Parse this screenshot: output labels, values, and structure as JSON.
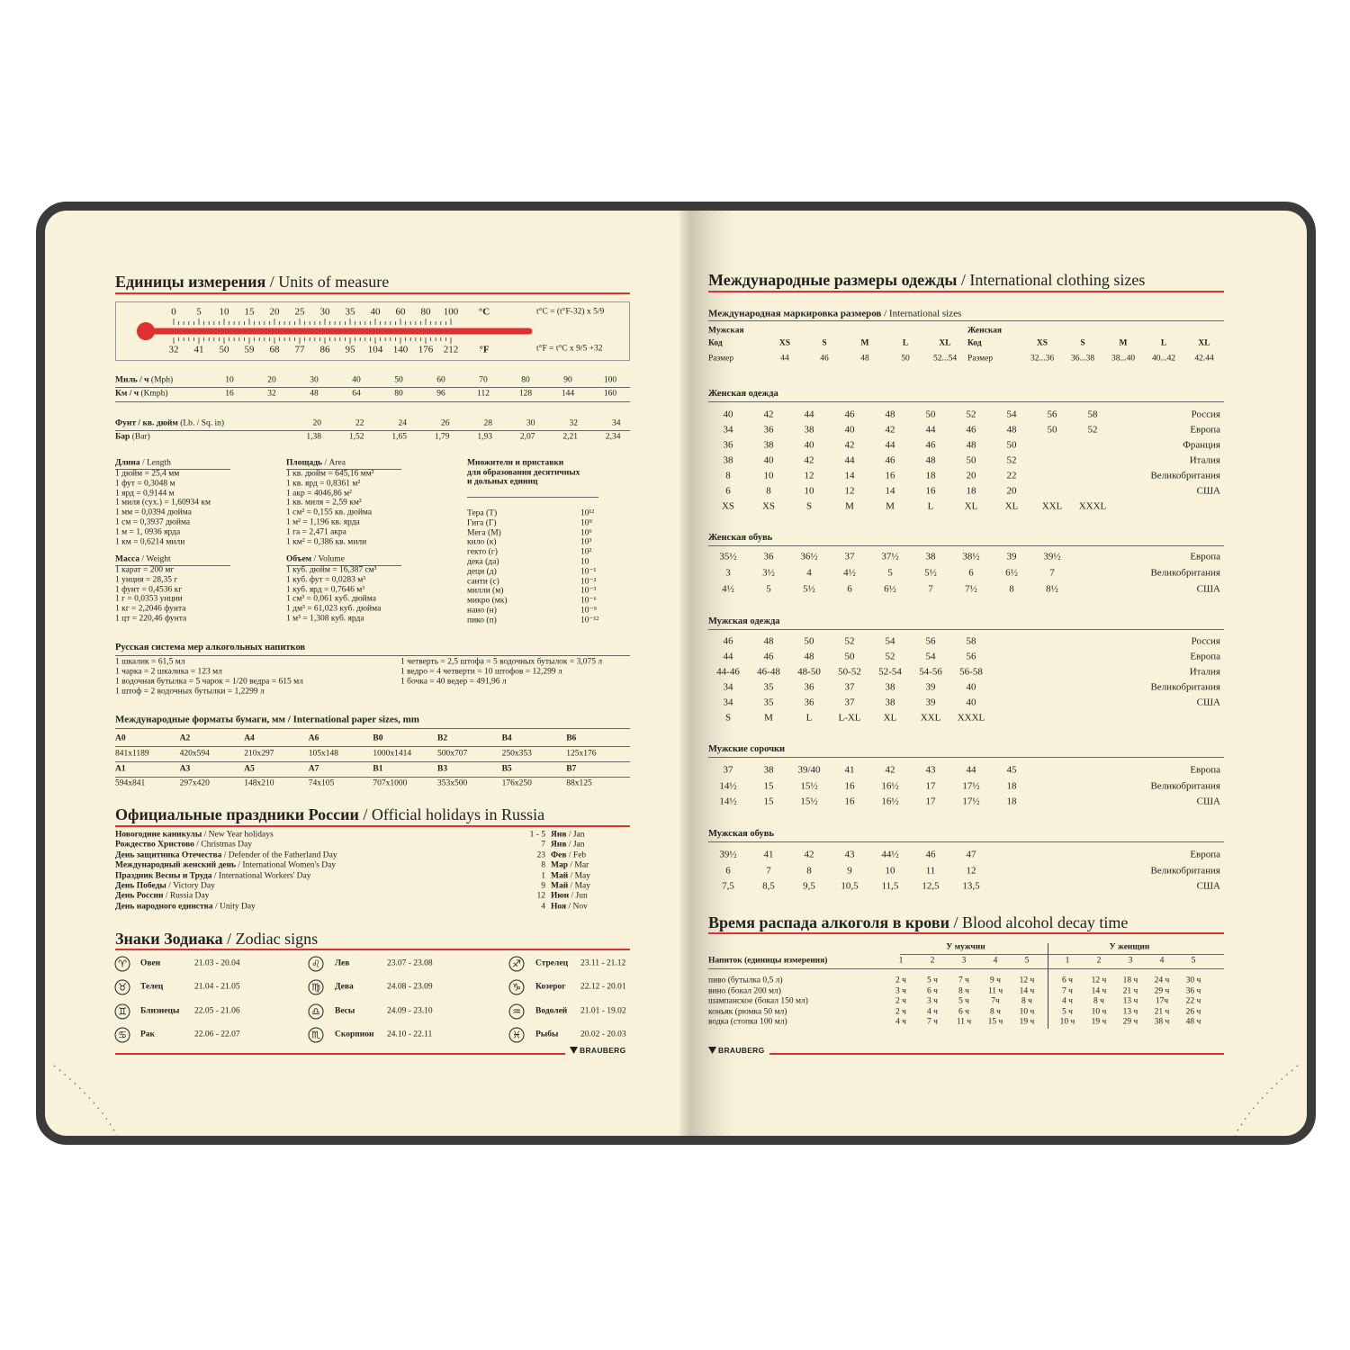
{
  "units": {
    "title_ru": "Единицы измерения",
    "title_en": "/ Units of measure",
    "thermo": {
      "celsius": [
        "0",
        "5",
        "10",
        "15",
        "20",
        "25",
        "30",
        "35",
        "40",
        "60",
        "80",
        "100"
      ],
      "fahrenheit": [
        "32",
        "41",
        "50",
        "59",
        "68",
        "77",
        "86",
        "95",
        "104",
        "140",
        "176",
        "212"
      ],
      "c_unit": "°C",
      "f_unit": "°F",
      "formula_c": "t°C = (t°F-32) x 5/9",
      "formula_f": "t°F = t°C x 9/5 +32",
      "accent": "#e0302f"
    },
    "speed": {
      "mph_ru": "Миль / ч",
      "mph_en": "(Mph)",
      "mph": [
        "10",
        "20",
        "30",
        "40",
        "50",
        "60",
        "70",
        "80",
        "90",
        "100"
      ],
      "kmh_ru": "Км / ч",
      "kmh_en": "(Kmph)",
      "kmh": [
        "16",
        "32",
        "48",
        "64",
        "80",
        "96",
        "112",
        "128",
        "144",
        "160"
      ]
    },
    "pressure": {
      "psi_ru": "Фунт / кв. дюйм",
      "psi_en": "(Lb. / Sq. in)",
      "psi": [
        "20",
        "22",
        "24",
        "26",
        "28",
        "30",
        "32",
        "34"
      ],
      "bar_ru": "Бар",
      "bar_en": "(Bar)",
      "bar": [
        "1,38",
        "1,52",
        "1,65",
        "1,79",
        "1,93",
        "2,07",
        "2,21",
        "2,34"
      ]
    },
    "length": {
      "title_ru": "Длина",
      "title_en": "/ Length",
      "items": [
        "1 дюйм = 25,4 мм",
        "1 фут = 0,3048 м",
        "1 ярд = 0,9144 м",
        "1 миля (сух.) = 1,60934 км",
        "1 мм = 0,0394 дюйма",
        "1 см = 0,3937 дюйма",
        "1 м = 1, 0936 ярда",
        "1 км = 0,6214 мили"
      ]
    },
    "area": {
      "title_ru": "Площадь",
      "title_en": "/ Area",
      "items": [
        "1 кв. дюйм = 645,16 мм²",
        "1 кв. ярд = 0,8361 м²",
        "1 акр = 4046,86 м²",
        "1 кв. миля = 2,59 км²",
        "1 см² = 0,155 кв. дюйма",
        "1 м² = 1,196 кв. ярда",
        "1 га = 2,471 акра",
        "1 км² = 0,386 кв. мили"
      ]
    },
    "mass": {
      "title_ru": "Масса",
      "title_en": "/ Weight",
      "items": [
        "1 карат = 200 мг",
        "1 унция = 28,35 г",
        "1 фунт = 0,4536 кг",
        "1 г = 0,0353 унции",
        "1 кг = 2,2046 фунта",
        "1 цт = 220,46 фунта"
      ]
    },
    "volume": {
      "title_ru": "Объем",
      "title_en": "/ Volume",
      "items": [
        "1 куб. дюйм = 16,387 см³",
        "1 куб. фут = 0,0283 м³",
        "1 куб. ярд = 0,7646 м³",
        "1 см³ = 0,061 куб. дюйма",
        "1 дм³ = 61,023 куб. дюйма",
        "1 м³ = 1,308 куб. ярда"
      ]
    },
    "prefixes": {
      "title": [
        "Множители и приставки",
        "для образования десятичных",
        "и дольных единиц"
      ],
      "items": [
        {
          "name": "Тера (Т)",
          "power": "10¹²"
        },
        {
          "name": "Гига (Г)",
          "power": "10⁹"
        },
        {
          "name": "Мега (М)",
          "power": "10⁶"
        },
        {
          "name": "кило (к)",
          "power": "10³"
        },
        {
          "name": "гекто (г)",
          "power": "10²"
        },
        {
          "name": "дека (да)",
          "power": "10"
        },
        {
          "name": "деци (д)",
          "power": "10⁻¹"
        },
        {
          "name": "санти (с)",
          "power": "10⁻²"
        },
        {
          "name": "милли (м)",
          "power": "10⁻³"
        },
        {
          "name": "микро (мк)",
          "power": "10⁻⁶"
        },
        {
          "name": "нано (н)",
          "power": "10⁻⁹"
        },
        {
          "name": "пико (п)",
          "power": "10⁻¹²"
        }
      ]
    }
  },
  "russian_alcohol": {
    "title": "Русская система мер алкогольных напитков",
    "left": [
      "1 шкалик = 61,5 мл",
      "1 чарка = 2 шкалика = 123 мл",
      "1 водочная бутылка = 5 чарок = 1/20 ведра = 615 мл",
      "1 штоф = 2 водочных бутылки = 1,2299 л"
    ],
    "right": [
      "1 четверть = 2,5 штофа = 5 водочных бутылок = 3,075 л",
      "1 ведро = 4 четверти = 10 штофов = 12,299 л",
      "1 бочка = 40 ведер = 491,96 л"
    ]
  },
  "paper": {
    "title_ru": "Международные форматы бумаги, мм",
    "title_en": "/ International paper sizes, mm",
    "rows": [
      [
        "A0",
        "A2",
        "A4",
        "A6",
        "B0",
        "B2",
        "B4",
        "B6"
      ],
      [
        "841x1189",
        "420x594",
        "210x297",
        "105x148",
        "1000x1414",
        "500x707",
        "250x353",
        "125x176"
      ],
      [
        "A1",
        "A3",
        "A5",
        "A7",
        "B1",
        "B3",
        "B5",
        "B7"
      ],
      [
        "594x841",
        "297x420",
        "148x210",
        "74x105",
        "707x1000",
        "353x500",
        "176x250",
        "88x125"
      ]
    ]
  },
  "holidays": {
    "title_ru": "Официальные праздники России",
    "title_en": "/ Official holidays in Russia",
    "items": [
      {
        "ru": "Новогодние каникулы",
        "en": "/ New Year holidays",
        "day": "1 - 5",
        "month_ru": "Янв",
        "month_en": "/ Jan"
      },
      {
        "ru": "Рождество Христово",
        "en": "/ Christmas Day",
        "day": "7",
        "month_ru": "Янв",
        "month_en": "/ Jan"
      },
      {
        "ru": "День защитника Отечества",
        "en": "/ Defender of the Fatherland Day",
        "day": "23",
        "month_ru": "Фев",
        "month_en": "/ Feb"
      },
      {
        "ru": "Международный женский день",
        "en": "/ International Women's Day",
        "day": "8",
        "month_ru": "Мар",
        "month_en": "/ Mar"
      },
      {
        "ru": "Праздник Весны и Труда",
        "en": "/ International Workers' Day",
        "day": "1",
        "month_ru": "Май",
        "month_en": "/ May"
      },
      {
        "ru": "День Победы",
        "en": "/ Victory Day",
        "day": "9",
        "month_ru": "Май",
        "month_en": "/ May"
      },
      {
        "ru": "День России",
        "en": "/ Russia Day",
        "day": "12",
        "month_ru": "Июн",
        "month_en": "/ Jun"
      },
      {
        "ru": "День народного единства",
        "en": "/ Unity Day",
        "day": "4",
        "month_ru": "Ноя",
        "month_en": "/ Nov"
      }
    ]
  },
  "zodiac": {
    "title_ru": "Знаки Зодиака",
    "title_en": "/ Zodiac signs",
    "items": [
      {
        "icon": "aries-icon",
        "glyph": "♈",
        "name": "Овен",
        "dates": "21.03 - 20.04"
      },
      {
        "icon": "taurus-icon",
        "glyph": "♉",
        "name": "Телец",
        "dates": "21.04 - 21.05"
      },
      {
        "icon": "gemini-icon",
        "glyph": "♊",
        "name": "Близнецы",
        "dates": "22.05 - 21.06"
      },
      {
        "icon": "cancer-icon",
        "glyph": "♋",
        "name": "Рак",
        "dates": "22.06 - 22.07"
      },
      {
        "icon": "leo-icon",
        "glyph": "♌",
        "name": "Лев",
        "dates": "23.07 - 23.08"
      },
      {
        "icon": "virgo-icon",
        "glyph": "♍",
        "name": "Дева",
        "dates": "24.08 - 23.09"
      },
      {
        "icon": "libra-icon",
        "glyph": "♎",
        "name": "Весы",
        "dates": "24.09 - 23.10"
      },
      {
        "icon": "scorpio-icon",
        "glyph": "♏",
        "name": "Скорпион",
        "dates": "24.10 - 22.11"
      },
      {
        "icon": "sagittarius-icon",
        "glyph": "♐",
        "name": "Стрелец",
        "dates": "23.11 - 21.12"
      },
      {
        "icon": "capricorn-icon",
        "glyph": "♑",
        "name": "Козерог",
        "dates": "22.12 - 20.01"
      },
      {
        "icon": "aquarius-icon",
        "glyph": "♒",
        "name": "Водолей",
        "dates": "21.01 - 19.02"
      },
      {
        "icon": "pisces-icon",
        "glyph": "♓",
        "name": "Рыбы",
        "dates": "20.02 - 20.03"
      }
    ]
  },
  "brand": "BRAUBERG",
  "clothing": {
    "title_ru": "Международные размеры одежды",
    "title_en": "/ International clothing sizes",
    "intl": {
      "title_ru": "Международная маркировка размеров",
      "title_en": "/ International sizes",
      "men": {
        "label": "Мужская",
        "code_label": "Код",
        "codes": [
          "XS",
          "S",
          "M",
          "L",
          "XL"
        ],
        "size_label": "Размер",
        "sizes": [
          "44",
          "46",
          "48",
          "50",
          "52...54"
        ]
      },
      "women": {
        "label": "Женская",
        "code_label": "Код",
        "codes": [
          "XS",
          "S",
          "M",
          "L",
          "XL"
        ],
        "size_label": "Размер",
        "sizes": [
          "32...36",
          "36...38",
          "38...40",
          "40...42",
          "42.44"
        ]
      }
    },
    "sections": [
      {
        "title": "Женская одежда",
        "rows": [
          {
            "values": [
              "40",
              "42",
              "44",
              "46",
              "48",
              "50",
              "52",
              "54",
              "56",
              "58"
            ],
            "country": "Россия"
          },
          {
            "values": [
              "34",
              "36",
              "38",
              "40",
              "42",
              "44",
              "46",
              "48",
              "50",
              "52"
            ],
            "country": "Европа"
          },
          {
            "values": [
              "36",
              "38",
              "40",
              "42",
              "44",
              "46",
              "48",
              "50"
            ],
            "country": "Франция"
          },
          {
            "values": [
              "38",
              "40",
              "42",
              "44",
              "46",
              "48",
              "50",
              "52"
            ],
            "country": "Италия"
          },
          {
            "values": [
              "8",
              "10",
              "12",
              "14",
              "16",
              "18",
              "20",
              "22"
            ],
            "country": "Великобритания"
          },
          {
            "values": [
              "6",
              "8",
              "10",
              "12",
              "14",
              "16",
              "18",
              "20"
            ],
            "country": "США"
          },
          {
            "values": [
              "XS",
              "XS",
              "S",
              "M",
              "M",
              "L",
              "XL",
              "XL",
              "XXL",
              "XXXL"
            ],
            "country": ""
          }
        ]
      },
      {
        "title": "Женская обувь",
        "rows": [
          {
            "values": [
              "35½",
              "36",
              "36½",
              "37",
              "37½",
              "38",
              "38½",
              "39",
              "39½"
            ],
            "country": "Европа"
          },
          {
            "values": [
              "3",
              "3½",
              "4",
              "4½",
              "5",
              "5½",
              "6",
              "6½",
              "7"
            ],
            "country": "Великобритания"
          },
          {
            "values": [
              "4½",
              "5",
              "5½",
              "6",
              "6½",
              "7",
              "7½",
              "8",
              "8½"
            ],
            "country": "США"
          }
        ]
      },
      {
        "title": "Мужская одежда",
        "rows": [
          {
            "values": [
              "46",
              "48",
              "50",
              "52",
              "54",
              "56",
              "58"
            ],
            "country": "Россия"
          },
          {
            "values": [
              "44",
              "46",
              "48",
              "50",
              "52",
              "54",
              "56"
            ],
            "country": "Европа"
          },
          {
            "values": [
              "44-46",
              "46-48",
              "48-50",
              "50-52",
              "52-54",
              "54-56",
              "56-58"
            ],
            "country": "Италия"
          },
          {
            "values": [
              "34",
              "35",
              "36",
              "37",
              "38",
              "39",
              "40"
            ],
            "country": "Великобритания"
          },
          {
            "values": [
              "34",
              "35",
              "36",
              "37",
              "38",
              "39",
              "40"
            ],
            "country": "США"
          },
          {
            "values": [
              "S",
              "M",
              "L",
              "L-XL",
              "XL",
              "XXL",
              "XXXL"
            ],
            "country": ""
          }
        ]
      },
      {
        "title": "Мужские сорочки",
        "rows": [
          {
            "values": [
              "37",
              "38",
              "39/40",
              "41",
              "42",
              "43",
              "44",
              "45"
            ],
            "country": "Европа"
          },
          {
            "values": [
              "14½",
              "15",
              "15½",
              "16",
              "16½",
              "17",
              "17½",
              "18"
            ],
            "country": "Великобритания"
          },
          {
            "values": [
              "14½",
              "15",
              "15½",
              "16",
              "16½",
              "17",
              "17½",
              "18"
            ],
            "country": "США"
          }
        ]
      },
      {
        "title": "Мужская обувь",
        "rows": [
          {
            "values": [
              "39½",
              "41",
              "42",
              "43",
              "44½",
              "46",
              "47"
            ],
            "country": "Европа"
          },
          {
            "values": [
              "6",
              "7",
              "8",
              "9",
              "10",
              "11",
              "12"
            ],
            "country": "Великобритания"
          },
          {
            "values": [
              "7,5",
              "8,5",
              "9,5",
              "10,5",
              "11,5",
              "12,5",
              "13,5"
            ],
            "country": "США"
          }
        ]
      }
    ]
  },
  "alcohol_decay": {
    "title_ru": "Время распада алкоголя в крови",
    "title_en": "/ Blood alcohol decay time",
    "men_label": "У мужчин",
    "women_label": "У женщин",
    "header": "Напиток (единицы измерения)",
    "cols": [
      "1",
      "2",
      "3",
      "4",
      "5"
    ],
    "rows": [
      {
        "drink": "пиво (бутылка 0,5 л)",
        "men": [
          "2 ч",
          "5 ч",
          "7 ч",
          "9 ч",
          "12 ч"
        ],
        "women": [
          "6 ч",
          "12 ч",
          "18 ч",
          "24 ч",
          "30 ч"
        ]
      },
      {
        "drink": "вино (бокал 200 мл)",
        "men": [
          "3 ч",
          "6 ч",
          "8 ч",
          "11 ч",
          "14 ч"
        ],
        "women": [
          "7 ч",
          "14 ч",
          "21 ч",
          "29 ч",
          "36 ч"
        ]
      },
      {
        "drink": "шампанское (бокал 150 мл)",
        "men": [
          "2 ч",
          "3 ч",
          "5 ч",
          "7ч",
          "8 ч"
        ],
        "women": [
          "4 ч",
          "8 ч",
          "13 ч",
          "17ч",
          "22 ч"
        ]
      },
      {
        "drink": "коньяк (рюмка 50 мл)",
        "men": [
          "2 ч",
          "4 ч",
          "6 ч",
          "8 ч",
          "10 ч"
        ],
        "women": [
          "5 ч",
          "10 ч",
          "13 ч",
          "21 ч",
          "26 ч"
        ]
      },
      {
        "drink": "водка (стопка 100 мл)",
        "men": [
          "4 ч",
          "7 ч",
          "11 ч",
          "15 ч",
          "19 ч"
        ],
        "women": [
          "10 ч",
          "19 ч",
          "29 ч",
          "38 ч",
          "48 ч"
        ]
      }
    ]
  }
}
